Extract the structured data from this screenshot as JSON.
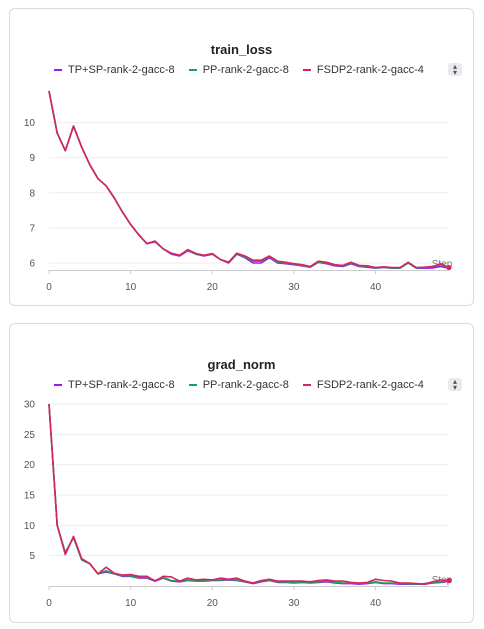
{
  "chart_data": [
    {
      "type": "line",
      "title": "train_loss",
      "xlabel": "Step",
      "ylabel": "",
      "xlim": [
        0,
        49
      ],
      "ylim": [
        5.8,
        10.9
      ],
      "xticks": [
        "0",
        "10",
        "20",
        "30",
        "40"
      ],
      "yticks": [
        "6",
        "7",
        "8",
        "9",
        "10"
      ],
      "grid": true,
      "legend": "top",
      "x": [
        0,
        1,
        2,
        3,
        4,
        5,
        6,
        7,
        8,
        9,
        10,
        11,
        12,
        13,
        14,
        15,
        16,
        17,
        18,
        19,
        20,
        21,
        22,
        23,
        24,
        25,
        26,
        27,
        28,
        29,
        30,
        31,
        32,
        33,
        34,
        35,
        36,
        37,
        38,
        39,
        40,
        41,
        42,
        43,
        44,
        45,
        46,
        47,
        48,
        49
      ],
      "series": [
        {
          "name": "TP+SP-rank-2-gacc-8",
          "color": "#9b19f5",
          "values": [
            10.9,
            9.7,
            9.2,
            9.9,
            9.3,
            8.8,
            8.4,
            8.2,
            7.85,
            7.45,
            7.1,
            6.8,
            6.55,
            6.6,
            6.4,
            6.25,
            6.2,
            6.35,
            6.25,
            6.2,
            6.25,
            6.1,
            6.0,
            6.25,
            6.15,
            6.0,
            6.0,
            6.15,
            6.0,
            5.98,
            5.95,
            5.92,
            5.88,
            6.02,
            5.98,
            5.92,
            5.9,
            5.98,
            5.9,
            5.88,
            5.85,
            5.87,
            5.85,
            5.85,
            6.0,
            5.85,
            5.85,
            5.86,
            5.9,
            5.85
          ]
        },
        {
          "name": "PP-rank-2-gacc-8",
          "color": "#1aa35a",
          "values": [
            10.9,
            9.7,
            9.2,
            9.9,
            9.3,
            8.8,
            8.4,
            8.2,
            7.85,
            7.45,
            7.1,
            6.8,
            6.55,
            6.62,
            6.4,
            6.27,
            6.22,
            6.37,
            6.26,
            6.22,
            6.26,
            6.1,
            6.02,
            6.27,
            6.17,
            6.05,
            6.05,
            6.18,
            6.03,
            6.0,
            5.97,
            5.93,
            5.9,
            6.03,
            6.0,
            5.94,
            5.92,
            6.0,
            5.92,
            5.9,
            5.86,
            5.88,
            5.86,
            5.86,
            6.0,
            5.86,
            5.87,
            5.9,
            5.95,
            5.86
          ]
        },
        {
          "name": "FSDP2-rank-2-gacc-4",
          "color": "#d6245e",
          "values": [
            10.9,
            9.7,
            9.2,
            9.9,
            9.3,
            8.8,
            8.4,
            8.2,
            7.85,
            7.45,
            7.1,
            6.8,
            6.55,
            6.62,
            6.4,
            6.28,
            6.22,
            6.38,
            6.27,
            6.22,
            6.27,
            6.1,
            6.02,
            6.28,
            6.2,
            6.08,
            6.08,
            6.2,
            6.05,
            6.02,
            5.98,
            5.95,
            5.9,
            6.05,
            6.02,
            5.95,
            5.93,
            6.02,
            5.93,
            5.92,
            5.87,
            5.89,
            5.87,
            5.87,
            6.02,
            5.87,
            5.88,
            5.9,
            5.98,
            5.87
          ]
        }
      ]
    },
    {
      "type": "line",
      "title": "grad_norm",
      "xlabel": "Step",
      "ylabel": "",
      "xlim": [
        0,
        49
      ],
      "ylim": [
        0,
        30
      ],
      "xticks": [
        "0",
        "10",
        "20",
        "30",
        "40"
      ],
      "yticks": [
        "5",
        "10",
        "15",
        "20",
        "25",
        "30"
      ],
      "grid": true,
      "legend": "top",
      "x": [
        0,
        1,
        2,
        3,
        4,
        5,
        6,
        7,
        8,
        9,
        10,
        11,
        12,
        13,
        14,
        15,
        16,
        17,
        18,
        19,
        20,
        21,
        22,
        23,
        24,
        25,
        26,
        27,
        28,
        29,
        30,
        31,
        32,
        33,
        34,
        35,
        36,
        37,
        38,
        39,
        40,
        41,
        42,
        43,
        44,
        45,
        46,
        47,
        48,
        49
      ],
      "series": [
        {
          "name": "TP+SP-rank-2-gacc-8",
          "color": "#9b19f5",
          "values": [
            30,
            10,
            5.5,
            8,
            4.3,
            3.7,
            2.0,
            2.3,
            2.0,
            1.6,
            1.6,
            1.3,
            1.3,
            0.8,
            1.3,
            0.8,
            0.7,
            0.9,
            0.8,
            0.8,
            0.9,
            0.9,
            1.0,
            0.9,
            0.7,
            0.4,
            0.7,
            0.9,
            0.6,
            0.6,
            0.5,
            0.6,
            0.5,
            0.6,
            0.7,
            0.5,
            0.4,
            0.4,
            0.3,
            0.4,
            0.6,
            0.4,
            0.4,
            0.3,
            0.3,
            0.3,
            0.3,
            0.5,
            0.6,
            0.8
          ]
        },
        {
          "name": "PP-rank-2-gacc-8",
          "color": "#1aa35a",
          "values": [
            30,
            10,
            5.5,
            8,
            4.3,
            3.7,
            2.0,
            2.5,
            2.0,
            1.7,
            1.7,
            1.4,
            1.4,
            0.9,
            1.4,
            0.9,
            0.8,
            1.0,
            0.9,
            0.9,
            1.0,
            1.0,
            1.1,
            1.0,
            0.8,
            0.5,
            0.8,
            1.0,
            0.7,
            0.7,
            0.6,
            0.7,
            0.6,
            0.7,
            0.8,
            0.6,
            0.5,
            0.5,
            0.4,
            0.5,
            0.7,
            0.5,
            0.5,
            0.4,
            0.4,
            0.3,
            0.4,
            0.6,
            0.7,
            0.9
          ]
        },
        {
          "name": "FSDP2-rank-2-gacc-4",
          "color": "#d6245e",
          "values": [
            30,
            10,
            5.2,
            8.2,
            4.5,
            3.7,
            2.0,
            3.1,
            2.1,
            1.8,
            1.9,
            1.6,
            1.6,
            0.8,
            1.6,
            1.5,
            0.8,
            1.3,
            1.0,
            1.1,
            1.0,
            1.3,
            1.1,
            1.3,
            0.8,
            0.5,
            0.9,
            1.1,
            0.8,
            0.8,
            0.8,
            0.8,
            0.7,
            0.9,
            1.0,
            0.8,
            0.8,
            0.6,
            0.5,
            0.6,
            1.1,
            0.9,
            0.8,
            0.5,
            0.5,
            0.4,
            0.3,
            0.7,
            1.0,
            0.9
          ]
        }
      ]
    }
  ]
}
